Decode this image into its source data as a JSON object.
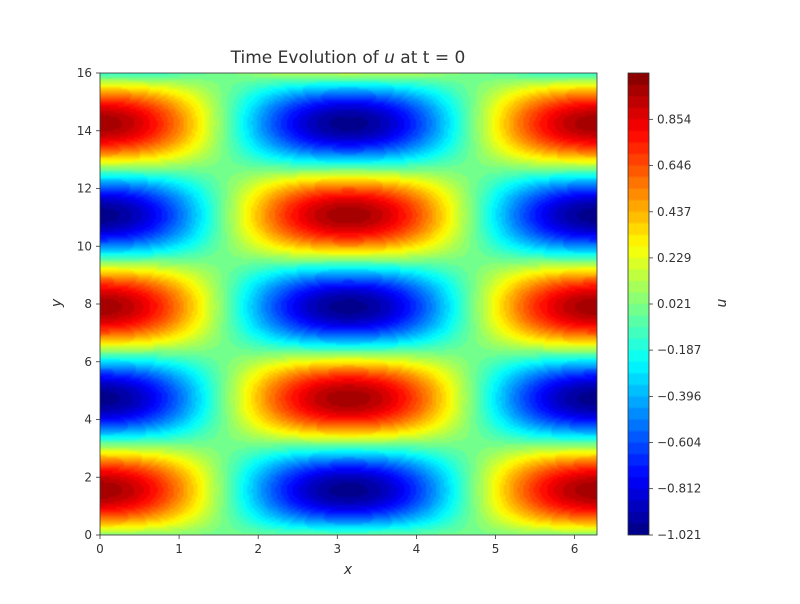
{
  "chart_data": {
    "type": "heatmap",
    "title": "Time Evolution of u at t = 0",
    "title_prefix": "Time Evolution of ",
    "title_var": "u",
    "title_suffix": " at t = 0",
    "xlabel": "x",
    "ylabel": "y",
    "colorbar_label": "u",
    "colormap": "jet",
    "xlim": [
      0,
      6.283
    ],
    "ylim": [
      0,
      16
    ],
    "vlim": [
      -1.021,
      1.063
    ],
    "x_ticks": [
      0,
      1,
      2,
      3,
      4,
      5,
      6
    ],
    "x_tick_labels": [
      "0",
      "1",
      "2",
      "3",
      "4",
      "5",
      "6"
    ],
    "y_ticks": [
      0,
      2,
      4,
      6,
      8,
      10,
      12,
      14,
      16
    ],
    "y_tick_labels": [
      "0",
      "2",
      "4",
      "6",
      "8",
      "10",
      "12",
      "14",
      "16"
    ],
    "colorbar_ticks": [
      0.854,
      0.646,
      0.437,
      0.229,
      0.021,
      -0.187,
      -0.396,
      -0.604,
      -0.812,
      -1.021
    ],
    "colorbar_tick_labels": [
      "0.854",
      "0.646",
      "0.437",
      "0.229",
      "0.021",
      "−0.187",
      "−0.396",
      "−0.604",
      "−0.812",
      "−1.021"
    ],
    "field": "u(x, y) = cos(x) · sin(2πy / 6.4) (approx.)",
    "contour_levels": 40,
    "grid": false
  }
}
